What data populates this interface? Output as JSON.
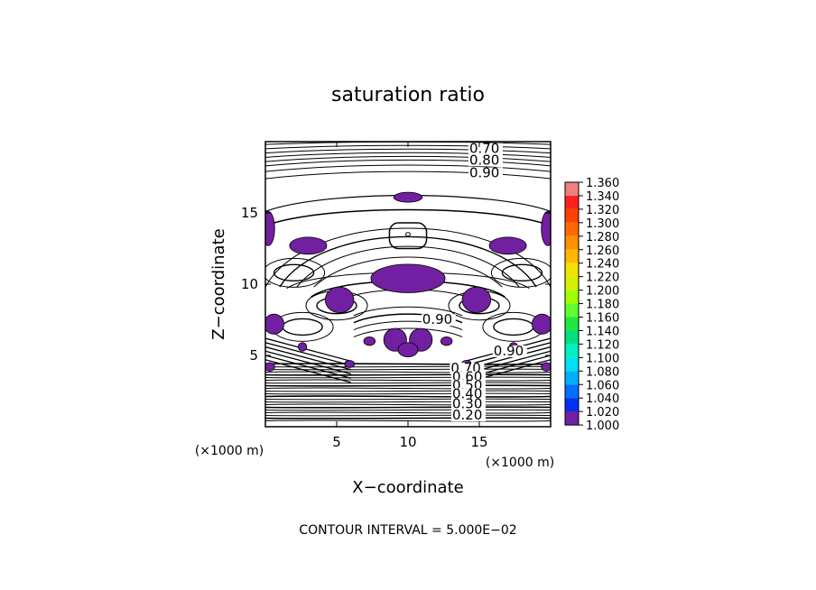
{
  "chart_data": {
    "type": "contour",
    "title": "saturation ratio",
    "xlabel": "X−coordinate",
    "ylabel": "Z−coordinate",
    "x_unit": "(×1000 m)",
    "y_unit": "(×1000 m)",
    "xlim": [
      0,
      20
    ],
    "ylim": [
      0,
      20
    ],
    "xticks": [
      5,
      10,
      15
    ],
    "yticks": [
      5,
      10,
      15
    ],
    "footer": "CONTOUR INTERVAL = 5.000E−02",
    "contour_labels": [
      {
        "text": "0.70",
        "x": 14.3,
        "z": 19.2
      },
      {
        "text": "0.80",
        "x": 14.3,
        "z": 18.4
      },
      {
        "text": "0.90",
        "x": 14.3,
        "z": 17.5
      },
      {
        "text": "0.90",
        "x": 11.0,
        "z": 7.2
      },
      {
        "text": "0.90",
        "x": 16.0,
        "z": 5.0
      },
      {
        "text": "0.70",
        "x": 13.0,
        "z": 3.8
      },
      {
        "text": "0.60",
        "x": 13.1,
        "z": 3.2
      },
      {
        "text": "0.50",
        "x": 13.1,
        "z": 2.6
      },
      {
        "text": "0.40",
        "x": 13.1,
        "z": 2.0
      },
      {
        "text": "0.30",
        "x": 13.1,
        "z": 1.3
      },
      {
        "text": "0.20",
        "x": 13.1,
        "z": 0.5
      }
    ],
    "colorbar": {
      "values": [
        "1.360",
        "1.340",
        "1.320",
        "1.300",
        "1.280",
        "1.260",
        "1.240",
        "1.220",
        "1.200",
        "1.180",
        "1.160",
        "1.140",
        "1.120",
        "1.100",
        "1.080",
        "1.060",
        "1.040",
        "1.020",
        "1.000"
      ],
      "colors": [
        "#f08080",
        "#ff2020",
        "#ff4000",
        "#ff6a00",
        "#ff9000",
        "#ffb800",
        "#f4e000",
        "#d4f000",
        "#a0ff00",
        "#60ff30",
        "#20e840",
        "#00e080",
        "#00f0c0",
        "#00e0f0",
        "#00b0ff",
        "#0070ff",
        "#0030f0",
        "#2020c0",
        "#7020a0"
      ]
    },
    "supersaturated_color": "#7020a0"
  }
}
